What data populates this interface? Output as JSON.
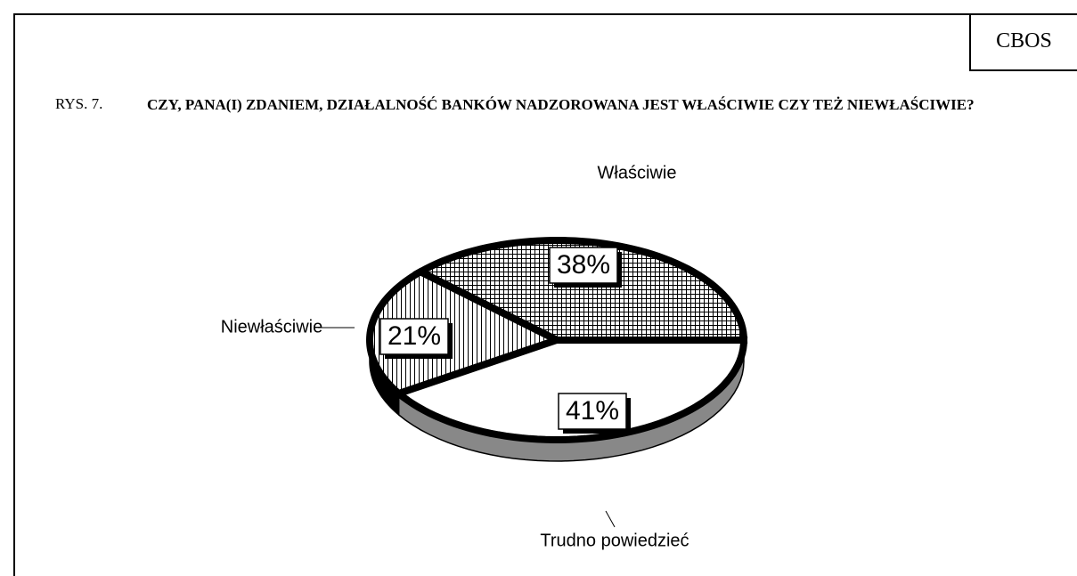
{
  "chart_data": {
    "type": "pie",
    "source": "CBOS",
    "figure_label": "RYS. 7.",
    "title": "CZY, PANA(I) ZDANIEM, DZIAŁALNOŚĆ BANKÓW NADZOROWANA JEST WŁAŚCIWIE CZY TEŻ NIEWŁAŚCIWIE?",
    "categories": [
      "Właściwie",
      "Niewłaściwie",
      "Trudno powiedzieć"
    ],
    "values": [
      38,
      21,
      41
    ],
    "value_labels": [
      "38%",
      "21%",
      "41%"
    ]
  }
}
